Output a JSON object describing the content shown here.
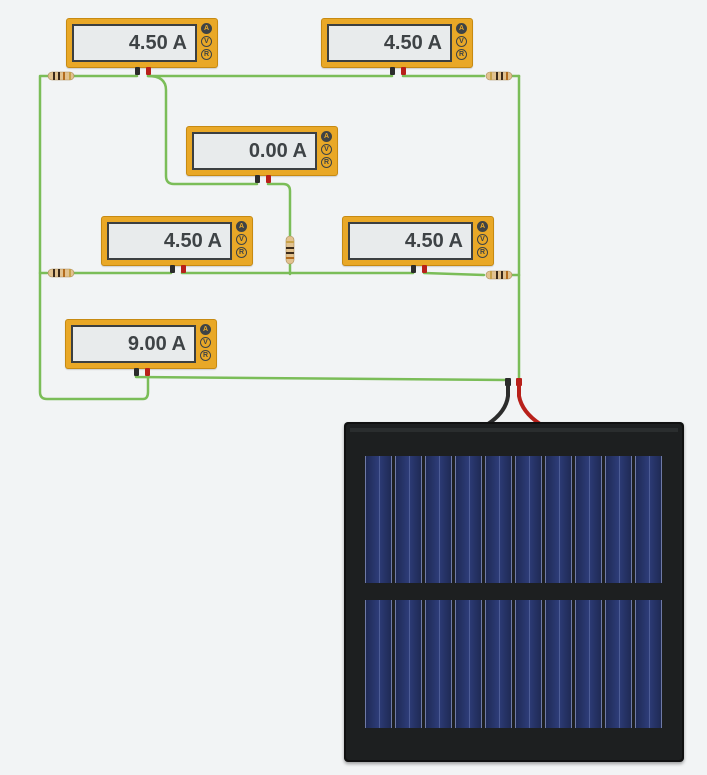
{
  "meters": [
    {
      "id": "top-left",
      "reading": "4.50 A",
      "modes": [
        "A",
        "V",
        "R"
      ],
      "active_mode": "A"
    },
    {
      "id": "top-right",
      "reading": "4.50 A",
      "modes": [
        "A",
        "V",
        "R"
      ],
      "active_mode": "A"
    },
    {
      "id": "center",
      "reading": "0.00 A",
      "modes": [
        "A",
        "V",
        "R"
      ],
      "active_mode": "A"
    },
    {
      "id": "mid-left",
      "reading": "4.50 A",
      "modes": [
        "A",
        "V",
        "R"
      ],
      "active_mode": "A"
    },
    {
      "id": "mid-right",
      "reading": "4.50 A",
      "modes": [
        "A",
        "V",
        "R"
      ],
      "active_mode": "A"
    },
    {
      "id": "bottom",
      "reading": "9.00 A",
      "modes": [
        "A",
        "V",
        "R"
      ],
      "active_mode": "A"
    }
  ],
  "colors": {
    "wire": "#7bbd58",
    "meter_body": "#e9a827",
    "probe_negative": "#2c2c2c",
    "probe_positive": "#b8201a",
    "panel": "#1d1f20",
    "canvas": "#f2f4f5"
  },
  "components": {
    "resistor_count": 5,
    "power_source": "solar panel"
  }
}
